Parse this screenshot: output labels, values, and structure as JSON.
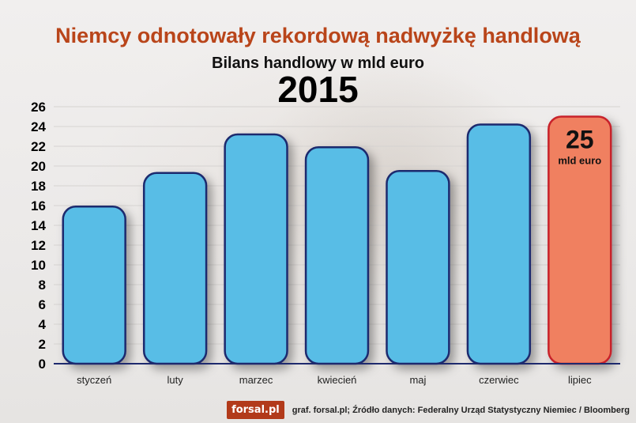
{
  "header": {
    "title": "Niemcy odnotowały rekordową nadwyżkę handlową",
    "subtitle": "Bilans handlowy w mld euro",
    "year": "2015"
  },
  "footer": {
    "logo": "forsal.pl",
    "source": "graf. forsal.pl; Źródło danych: Federalny Urząd Statystyczny Niemiec / Bloomberg"
  },
  "colors": {
    "bar": "#59bde6",
    "bar_border": "#1e2a6e",
    "highlight_bar": "#f08060",
    "highlight_border": "#c8232c",
    "title": "#b9451a"
  },
  "chart_data": {
    "type": "bar",
    "categories": [
      "styczeń",
      "luty",
      "marzec",
      "kwiecień",
      "maj",
      "czerwiec",
      "lipiec"
    ],
    "values": [
      15.9,
      19.3,
      23.2,
      21.9,
      19.5,
      24.2,
      25
    ],
    "highlight_index": 6,
    "highlight_label": {
      "value": "25",
      "unit": "mld euro"
    },
    "ylim": [
      0,
      26
    ],
    "yticks": [
      0,
      2,
      4,
      6,
      8,
      10,
      12,
      14,
      16,
      18,
      20,
      22,
      24,
      26
    ],
    "grid": true
  }
}
